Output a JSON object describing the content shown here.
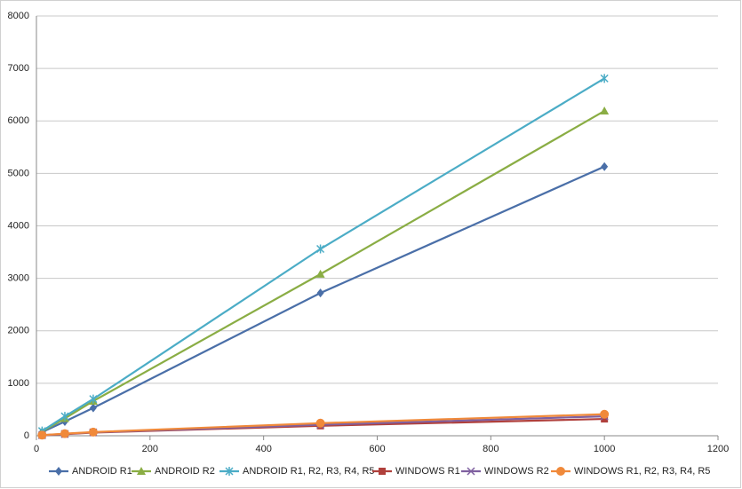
{
  "chart_data": {
    "type": "line",
    "x": [
      10,
      50,
      100,
      500,
      1000
    ],
    "series": [
      {
        "name": "ANDROID R1",
        "color": "#4a6fa8",
        "marker": "diamond",
        "values": [
          70,
          270,
          530,
          2720,
          5130
        ]
      },
      {
        "name": "ANDROID R2",
        "color": "#8aad44",
        "marker": "triangle",
        "values": [
          80,
          330,
          660,
          3080,
          6190
        ]
      },
      {
        "name": "ANDROID R1, R2, R3, R4, R5",
        "color": "#4bacc6",
        "marker": "star",
        "values": [
          90,
          370,
          700,
          3560,
          6810
        ]
      },
      {
        "name": "WINDOWS R1",
        "color": "#b0403c",
        "marker": "square",
        "values": [
          10,
          30,
          60,
          190,
          320
        ]
      },
      {
        "name": "WINDOWS R2",
        "color": "#7f60a0",
        "marker": "x",
        "values": [
          10,
          35,
          65,
          210,
          370
        ]
      },
      {
        "name": "WINDOWS R1, R2, R3, R4, R5",
        "color": "#f0893a",
        "marker": "circle",
        "values": [
          12,
          40,
          70,
          240,
          410
        ]
      }
    ],
    "xlim": [
      0,
      1200
    ],
    "xticks": [
      0,
      200,
      400,
      600,
      800,
      1000,
      1200
    ],
    "ylim": [
      0,
      8000
    ],
    "yticks": [
      0,
      1000,
      2000,
      3000,
      4000,
      5000,
      6000,
      7000,
      8000
    ],
    "grid": true,
    "legend": "bottom"
  }
}
